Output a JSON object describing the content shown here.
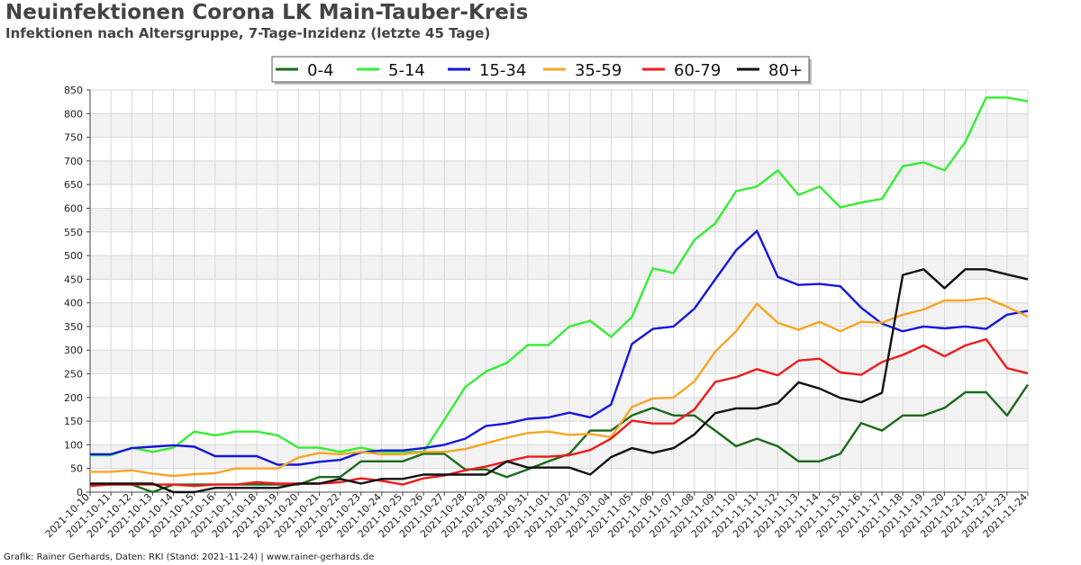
{
  "title": "Neuinfektionen Corona LK Main-Tauber-Kreis",
  "subtitle": "Infektionen nach Altersgruppe, 7-Tage-Inzidenz (letzte 45 Tage)",
  "footer": "Grafik: Rainer Gerhards, Daten: RKI (Stand: 2021-11-24) | www.rainer-gerhards.de",
  "chart_data": {
    "type": "line",
    "title": "Neuinfektionen Corona LK Main-Tauber-Kreis",
    "subtitle": "Infektionen nach Altersgruppe, 7-Tage-Inzidenz (letzte 45 Tage)",
    "xlabel": "",
    "ylabel": "",
    "ylim": [
      0,
      850
    ],
    "yticks": [
      0,
      50,
      100,
      150,
      200,
      250,
      300,
      350,
      400,
      450,
      500,
      550,
      600,
      650,
      700,
      750,
      800,
      850
    ],
    "grid": true,
    "legend_position": "top-center",
    "categories": [
      "2021-10-10",
      "2021-10-11",
      "2021-10-12",
      "2021-10-13",
      "2021-10-14",
      "2021-10-15",
      "2021-10-16",
      "2021-10-17",
      "2021-10-18",
      "2021-10-19",
      "2021-10-20",
      "2021-10-21",
      "2021-10-22",
      "2021-10-23",
      "2021-10-24",
      "2021-10-25",
      "2021-10-26",
      "2021-10-27",
      "2021-10-28",
      "2021-10-29",
      "2021-10-30",
      "2021-10-31",
      "2021-11-01",
      "2021-11-02",
      "2021-11-03",
      "2021-11-04",
      "2021-11-05",
      "2021-11-06",
      "2021-11-07",
      "2021-11-08",
      "2021-11-09",
      "2021-11-10",
      "2021-11-11",
      "2021-11-12",
      "2021-11-13",
      "2021-11-14",
      "2021-11-15",
      "2021-11-16",
      "2021-11-17",
      "2021-11-18",
      "2021-11-19",
      "2021-11-20",
      "2021-11-21",
      "2021-11-22",
      "2021-11-23",
      "2021-11-24"
    ],
    "series": [
      {
        "name": "0-4",
        "color": "#1a6b1a",
        "values": [
          16,
          16,
          16,
          0,
          16,
          16,
          16,
          16,
          16,
          16,
          16,
          32,
          32,
          65,
          65,
          65,
          81,
          81,
          48,
          48,
          32,
          48,
          65,
          81,
          130,
          130,
          162,
          178,
          162,
          162,
          130,
          97,
          113,
          97,
          65,
          65,
          81,
          146,
          130,
          162,
          162,
          178,
          211,
          211,
          162,
          227
        ]
      },
      {
        "name": "5-14",
        "color": "#33ee33",
        "values": [
          78,
          78,
          94,
          85,
          94,
          128,
          120,
          128,
          128,
          120,
          94,
          94,
          85,
          94,
          85,
          85,
          85,
          153,
          222,
          255,
          273,
          311,
          311,
          350,
          362,
          328,
          370,
          473,
          463,
          533,
          568,
          636,
          646,
          680,
          628,
          646,
          602,
          612,
          620,
          689,
          697,
          680,
          740,
          834,
          834,
          826
        ]
      },
      {
        "name": "15-34",
        "color": "#1515dd",
        "values": [
          80,
          80,
          93,
          96,
          99,
          96,
          76,
          76,
          76,
          58,
          58,
          64,
          68,
          84,
          88,
          88,
          93,
          100,
          113,
          140,
          145,
          155,
          158,
          168,
          158,
          185,
          313,
          345,
          350,
          388,
          450,
          511,
          552,
          455,
          438,
          440,
          435,
          390,
          356,
          340,
          350,
          346,
          350,
          345,
          375,
          383
        ]
      },
      {
        "name": "35-59",
        "color": "#f5a623",
        "values": [
          43,
          43,
          46,
          39,
          34,
          38,
          40,
          50,
          50,
          50,
          73,
          83,
          80,
          85,
          80,
          80,
          85,
          85,
          91,
          103,
          115,
          125,
          128,
          121,
          123,
          116,
          180,
          198,
          200,
          234,
          297,
          340,
          398,
          358,
          343,
          360,
          340,
          360,
          358,
          375,
          386,
          405,
          405,
          410,
          392,
          371
        ]
      },
      {
        "name": "60-79",
        "color": "#ee1c1c",
        "values": [
          13,
          16,
          16,
          16,
          16,
          13,
          16,
          16,
          21,
          18,
          18,
          18,
          21,
          29,
          24,
          16,
          29,
          35,
          46,
          54,
          65,
          75,
          75,
          78,
          89,
          113,
          151,
          145,
          145,
          175,
          233,
          243,
          260,
          247,
          278,
          282,
          253,
          248,
          275,
          290,
          310,
          287,
          310,
          323,
          262,
          251
        ]
      },
      {
        "name": "80+",
        "color": "#111111",
        "values": [
          18,
          18,
          18,
          18,
          0,
          0,
          9,
          9,
          9,
          9,
          18,
          18,
          28,
          18,
          28,
          28,
          37,
          37,
          37,
          37,
          65,
          52,
          52,
          52,
          37,
          74,
          93,
          83,
          93,
          122,
          167,
          177,
          177,
          188,
          232,
          219,
          199,
          190,
          210,
          459,
          471,
          431,
          471,
          471,
          460,
          450
        ]
      }
    ]
  }
}
